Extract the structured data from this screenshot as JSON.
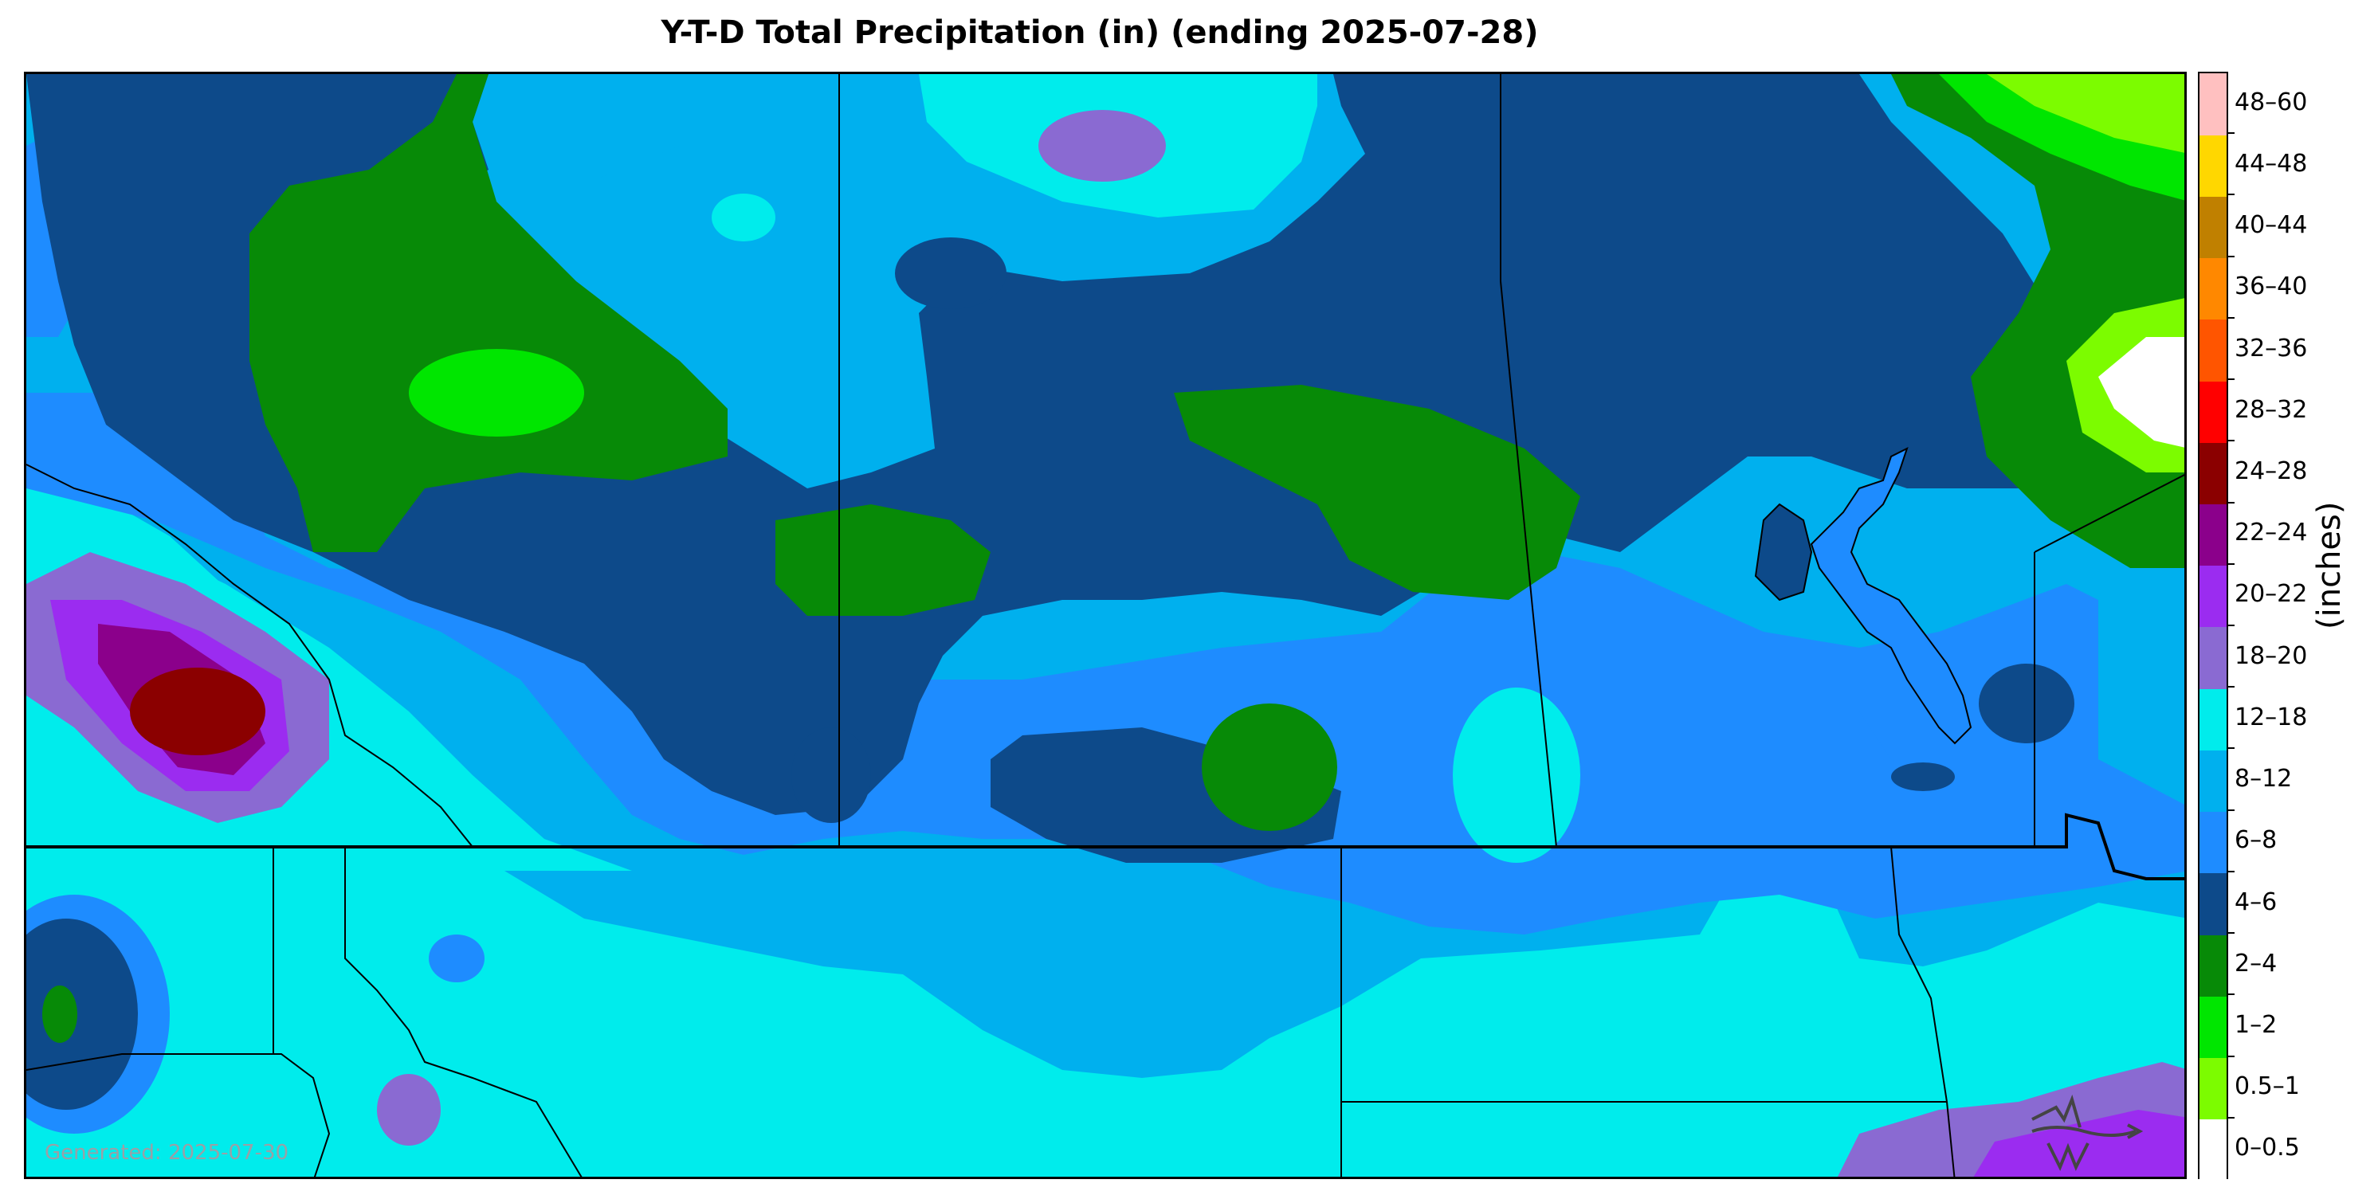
{
  "title": "Y-T-D Total Precipitation (in) (ending 2025-07-28)",
  "generated": "Generated: 2025-07-30",
  "units_label": "(inches)",
  "legend": [
    {
      "label": "0–0.5",
      "color": "#ffffff"
    },
    {
      "label": "0.5–1",
      "color": "#7cfc00"
    },
    {
      "label": "1–2",
      "color": "#00e600"
    },
    {
      "label": "2–4",
      "color": "#078a07"
    },
    {
      "label": "4–6",
      "color": "#0d4a8a"
    },
    {
      "label": "6–8",
      "color": "#1e8cff"
    },
    {
      "label": "8–12",
      "color": "#00b0ee"
    },
    {
      "label": "12–18",
      "color": "#00ecec"
    },
    {
      "label": "18–20",
      "color": "#8a6ad2"
    },
    {
      "label": "20–22",
      "color": "#9b2cf0"
    },
    {
      "label": "22–24",
      "color": "#8b008b"
    },
    {
      "label": "24–28",
      "color": "#8b0000"
    },
    {
      "label": "28–32",
      "color": "#ff0000"
    },
    {
      "label": "32–36",
      "color": "#ff5500"
    },
    {
      "label": "36–40",
      "color": "#ff8800"
    },
    {
      "label": "40–44",
      "color": "#c08000"
    },
    {
      "label": "44–48",
      "color": "#ffd700"
    },
    {
      "label": "48–60",
      "color": "#ffc0c0"
    }
  ],
  "logo_icon": "wave-logo-icon"
}
